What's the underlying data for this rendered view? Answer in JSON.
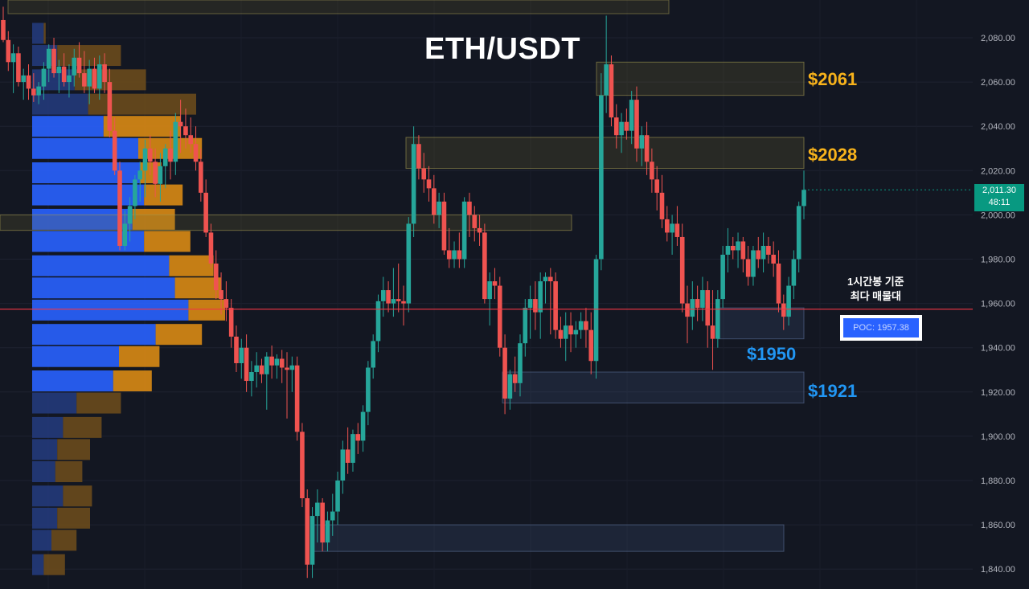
{
  "title": "ETH/USDT",
  "levels": {
    "l2061": "$2061",
    "l2028": "$2028",
    "l1950": "$1950",
    "l1921": "$1921"
  },
  "annotation": {
    "line1": "1시간봉 기준",
    "line2": "최다 매물대"
  },
  "poc_label": "POC: 1957.38",
  "last_price": {
    "price": "2,011.30",
    "countdown": "48:11"
  },
  "colors": {
    "background": "#131722",
    "up": "#26a69a",
    "down": "#ef5350",
    "vp_buy": "#2962ff",
    "vp_sell": "#ff9800",
    "poc_line": "#f23645",
    "gold": "#f7b21b",
    "blue_label": "#2196f3"
  },
  "chart_data": {
    "type": "candlestick",
    "symbol": "ETH/USDT",
    "timeframe_note": "1시간봉 기준",
    "y_axis": {
      "ticks": [
        2080,
        2060,
        2040,
        2020,
        2000,
        1980,
        1960,
        1940,
        1920,
        1900,
        1880,
        1860,
        1840
      ],
      "tick_labels": [
        "2,080.00",
        "2,060.00",
        "2,040.00",
        "2,020.00",
        "2,000.00",
        "1,980.00",
        "1,960.00",
        "1,940.00",
        "1,920.00",
        "1,900.00",
        "1,880.00",
        "1,860.00",
        "1,840.00"
      ],
      "ylim": [
        1836,
        2092
      ]
    },
    "poc": 1957.38,
    "last_price": 2011.3,
    "zones": [
      {
        "label": "$2061",
        "low": 2054,
        "high": 2069,
        "color": "gold"
      },
      {
        "label": "$2028",
        "low": 2021,
        "high": 2035,
        "color": "gold"
      },
      {
        "label": "",
        "low": 1993,
        "high": 2000,
        "color": "gold"
      },
      {
        "label": "$1950",
        "low": 1944,
        "high": 1958,
        "color": "blue"
      },
      {
        "label": "$1921",
        "low": 1915,
        "high": 1929,
        "color": "blue"
      },
      {
        "label": "",
        "low": 1848,
        "high": 1860,
        "color": "blue"
      }
    ],
    "candles": [
      [
        2088,
        2094,
        2078,
        2079
      ],
      [
        2079,
        2083,
        2065,
        2069
      ],
      [
        2069,
        2077,
        2055,
        2073
      ],
      [
        2073,
        2076,
        2058,
        2060
      ],
      [
        2060,
        2066,
        2052,
        2063
      ],
      [
        2063,
        2068,
        2052,
        2057
      ],
      [
        2057,
        2064,
        2051,
        2054
      ],
      [
        2054,
        2060,
        2050,
        2058
      ],
      [
        2058,
        2069,
        2052,
        2066
      ],
      [
        2066,
        2077,
        2060,
        2075
      ],
      [
        2075,
        2080,
        2062,
        2064
      ],
      [
        2064,
        2070,
        2055,
        2067
      ],
      [
        2067,
        2073,
        2058,
        2060
      ],
      [
        2060,
        2068,
        2053,
        2063
      ],
      [
        2063,
        2075,
        2058,
        2071
      ],
      [
        2071,
        2078,
        2062,
        2064
      ],
      [
        2064,
        2074,
        2055,
        2058
      ],
      [
        2058,
        2070,
        2050,
        2066
      ],
      [
        2066,
        2071,
        2055,
        2057
      ],
      [
        2057,
        2072,
        2052,
        2068
      ],
      [
        2068,
        2073,
        2055,
        2060
      ],
      [
        2060,
        2066,
        2035,
        2038
      ],
      [
        2038,
        2044,
        2018,
        2020
      ],
      [
        2020,
        2024,
        1984,
        1986
      ],
      [
        1986,
        2002,
        1984,
        1996
      ],
      [
        1996,
        2008,
        1988,
        2004
      ],
      [
        2004,
        2018,
        1998,
        2016
      ],
      [
        2016,
        2024,
        2006,
        2020
      ],
      [
        2020,
        2034,
        2008,
        2030
      ],
      [
        2030,
        2036,
        2018,
        2024
      ],
      [
        2024,
        2030,
        2008,
        2014
      ],
      [
        2014,
        2028,
        2006,
        2022
      ],
      [
        2022,
        2032,
        2012,
        2030
      ],
      [
        2030,
        2038,
        2016,
        2024
      ],
      [
        2024,
        2046,
        2018,
        2042
      ],
      [
        2042,
        2052,
        2028,
        2040
      ],
      [
        2040,
        2048,
        2030,
        2036
      ],
      [
        2036,
        2044,
        2028,
        2032
      ],
      [
        2032,
        2040,
        2020,
        2024
      ],
      [
        2024,
        2030,
        2006,
        2010
      ],
      [
        2010,
        2016,
        1990,
        1992
      ],
      [
        1992,
        1996,
        1976,
        1978
      ],
      [
        1978,
        1984,
        1962,
        1966
      ],
      [
        1966,
        1974,
        1955,
        1962
      ],
      [
        1962,
        1970,
        1952,
        1958
      ],
      [
        1958,
        1962,
        1940,
        1945
      ],
      [
        1945,
        1950,
        1929,
        1933
      ],
      [
        1933,
        1944,
        1926,
        1940
      ],
      [
        1940,
        1946,
        1920,
        1925
      ],
      [
        1925,
        1934,
        1918,
        1929
      ],
      [
        1929,
        1938,
        1922,
        1932
      ],
      [
        1932,
        1935,
        1924,
        1928
      ],
      [
        1928,
        1938,
        1912,
        1936
      ],
      [
        1936,
        1941,
        1926,
        1932
      ],
      [
        1932,
        1937,
        1926,
        1935
      ],
      [
        1935,
        1939,
        1924,
        1931
      ],
      [
        1931,
        1938,
        1908,
        1930
      ],
      [
        1930,
        1936,
        1920,
        1932
      ],
      [
        1932,
        1936,
        1898,
        1902
      ],
      [
        1902,
        1906,
        1868,
        1872
      ],
      [
        1872,
        1876,
        1836,
        1842
      ],
      [
        1842,
        1868,
        1836,
        1864
      ],
      [
        1864,
        1876,
        1852,
        1870
      ],
      [
        1870,
        1872,
        1848,
        1852
      ],
      [
        1852,
        1866,
        1848,
        1862
      ],
      [
        1862,
        1874,
        1855,
        1866
      ],
      [
        1866,
        1884,
        1860,
        1880
      ],
      [
        1880,
        1898,
        1874,
        1894
      ],
      [
        1894,
        1904,
        1883,
        1888
      ],
      [
        1888,
        1903,
        1884,
        1901
      ],
      [
        1901,
        1906,
        1892,
        1898
      ],
      [
        1898,
        1914,
        1893,
        1911
      ],
      [
        1911,
        1934,
        1905,
        1931
      ],
      [
        1931,
        1946,
        1926,
        1943
      ],
      [
        1943,
        1964,
        1938,
        1961
      ],
      [
        1961,
        1972,
        1954,
        1966
      ],
      [
        1966,
        1970,
        1956,
        1960
      ],
      [
        1960,
        1976,
        1954,
        1962
      ],
      [
        1962,
        1978,
        1956,
        1961
      ],
      [
        1961,
        1968,
        1950,
        1960
      ],
      [
        1960,
        1999,
        1956,
        1996
      ],
      [
        1996,
        2040,
        1990,
        2032
      ],
      [
        2032,
        2036,
        2016,
        2021
      ],
      [
        2021,
        2028,
        2010,
        2016
      ],
      [
        2016,
        2022,
        2006,
        2012
      ],
      [
        2012,
        2018,
        1996,
        2000
      ],
      [
        2000,
        2010,
        1994,
        2006
      ],
      [
        2006,
        2010,
        1982,
        1984
      ],
      [
        1984,
        1994,
        1976,
        1980
      ],
      [
        1980,
        1988,
        1976,
        1984
      ],
      [
        1984,
        1992,
        1976,
        1980
      ],
      [
        1980,
        2008,
        1976,
        2006
      ],
      [
        2006,
        2010,
        1990,
        2000
      ],
      [
        2000,
        2004,
        1988,
        1994
      ],
      [
        1994,
        2000,
        1986,
        1992
      ],
      [
        1992,
        1996,
        1960,
        1962
      ],
      [
        1962,
        1974,
        1950,
        1970
      ],
      [
        1970,
        1976,
        1962,
        1968
      ],
      [
        1968,
        1972,
        1936,
        1940
      ],
      [
        1940,
        1946,
        1910,
        1917
      ],
      [
        1917,
        1930,
        1912,
        1928
      ],
      [
        1928,
        1936,
        1920,
        1924
      ],
      [
        1924,
        1946,
        1918,
        1942
      ],
      [
        1942,
        1962,
        1936,
        1958
      ],
      [
        1958,
        1968,
        1944,
        1962
      ],
      [
        1962,
        1970,
        1948,
        1956
      ],
      [
        1956,
        1974,
        1944,
        1970
      ],
      [
        1970,
        1974,
        1960,
        1972
      ],
      [
        1972,
        1976,
        1946,
        1970
      ],
      [
        1970,
        1974,
        1944,
        1948
      ],
      [
        1948,
        1954,
        1940,
        1944
      ],
      [
        1944,
        1956,
        1934,
        1950
      ],
      [
        1950,
        1956,
        1938,
        1946
      ],
      [
        1946,
        1952,
        1940,
        1948
      ],
      [
        1948,
        1956,
        1944,
        1952
      ],
      [
        1952,
        1958,
        1940,
        1948
      ],
      [
        1948,
        1956,
        1928,
        1934
      ],
      [
        1934,
        1982,
        1926,
        1980
      ],
      [
        1980,
        2064,
        1975,
        2054
      ],
      [
        2054,
        2090,
        2046,
        2068
      ],
      [
        2068,
        2072,
        2040,
        2044
      ],
      [
        2044,
        2050,
        2030,
        2036
      ],
      [
        2036,
        2046,
        2028,
        2042
      ],
      [
        2042,
        2048,
        2034,
        2038
      ],
      [
        2038,
        2056,
        2032,
        2052
      ],
      [
        2052,
        2058,
        2024,
        2030
      ],
      [
        2030,
        2040,
        2022,
        2036
      ],
      [
        2036,
        2042,
        2018,
        2024
      ],
      [
        2024,
        2030,
        2010,
        2016
      ],
      [
        2016,
        2022,
        2002,
        2010
      ],
      [
        2010,
        2018,
        1994,
        1998
      ],
      [
        1998,
        2004,
        1988,
        1992
      ],
      [
        1992,
        2000,
        1982,
        1996
      ],
      [
        1996,
        2004,
        1986,
        1990
      ],
      [
        1990,
        1996,
        1956,
        1960
      ],
      [
        1960,
        1968,
        1942,
        1954
      ],
      [
        1954,
        1970,
        1948,
        1962
      ],
      [
        1962,
        1968,
        1952,
        1958
      ],
      [
        1958,
        1972,
        1952,
        1966
      ],
      [
        1966,
        1970,
        1940,
        1950
      ],
      [
        1950,
        1966,
        1930,
        1944
      ],
      [
        1944,
        1966,
        1940,
        1962
      ],
      [
        1962,
        1986,
        1958,
        1982
      ],
      [
        1982,
        1994,
        1974,
        1986
      ],
      [
        1986,
        1990,
        1980,
        1984
      ],
      [
        1984,
        1992,
        1976,
        1988
      ],
      [
        1988,
        1990,
        1974,
        1980
      ],
      [
        1980,
        1986,
        1968,
        1972
      ],
      [
        1972,
        1986,
        1968,
        1984
      ],
      [
        1984,
        1990,
        1976,
        1980
      ],
      [
        1980,
        1992,
        1974,
        1986
      ],
      [
        1986,
        1990,
        1978,
        1982
      ],
      [
        1982,
        1988,
        1972,
        1978
      ],
      [
        1978,
        1984,
        1956,
        1960
      ],
      [
        1960,
        1964,
        1948,
        1954
      ],
      [
        1954,
        1972,
        1950,
        1968
      ],
      [
        1968,
        1984,
        1962,
        1980
      ],
      [
        1980,
        2006,
        1974,
        2004
      ],
      [
        2004,
        2020,
        1998,
        2011.3
      ]
    ],
    "volume_profile_note": "left-anchored horizontal bars, buy (blue) and sell (orange) portions",
    "volume_profile": [
      {
        "price": 2082,
        "buy": 12,
        "sell": 14
      },
      {
        "price": 2072,
        "buy": 26,
        "sell": 92
      },
      {
        "price": 2061,
        "buy": 44,
        "sell": 118
      },
      {
        "price": 2050,
        "buy": 58,
        "sell": 170
      },
      {
        "price": 2040,
        "buy": 74,
        "sell": 154
      },
      {
        "price": 2030,
        "buy": 110,
        "sell": 176
      },
      {
        "price": 2019,
        "buy": 112,
        "sell": 134
      },
      {
        "price": 2009,
        "buy": 116,
        "sell": 156
      },
      {
        "price": 1998,
        "buy": 104,
        "sell": 148
      },
      {
        "price": 1988,
        "buy": 116,
        "sell": 164
      },
      {
        "price": 1977,
        "buy": 142,
        "sell": 188
      },
      {
        "price": 1967,
        "buy": 148,
        "sell": 196
      },
      {
        "price": 1957,
        "buy": 162,
        "sell": 200
      },
      {
        "price": 1946,
        "buy": 128,
        "sell": 176
      },
      {
        "price": 1936,
        "buy": 90,
        "sell": 132
      },
      {
        "price": 1925,
        "buy": 84,
        "sell": 124
      },
      {
        "price": 1915,
        "buy": 46,
        "sell": 92
      },
      {
        "price": 1904,
        "buy": 32,
        "sell": 72
      },
      {
        "price": 1894,
        "buy": 26,
        "sell": 60
      },
      {
        "price": 1884,
        "buy": 24,
        "sell": 52
      },
      {
        "price": 1873,
        "buy": 32,
        "sell": 62
      },
      {
        "price": 1863,
        "buy": 26,
        "sell": 60
      },
      {
        "price": 1853,
        "buy": 20,
        "sell": 46
      },
      {
        "price": 1842,
        "buy": 12,
        "sell": 34
      }
    ]
  }
}
